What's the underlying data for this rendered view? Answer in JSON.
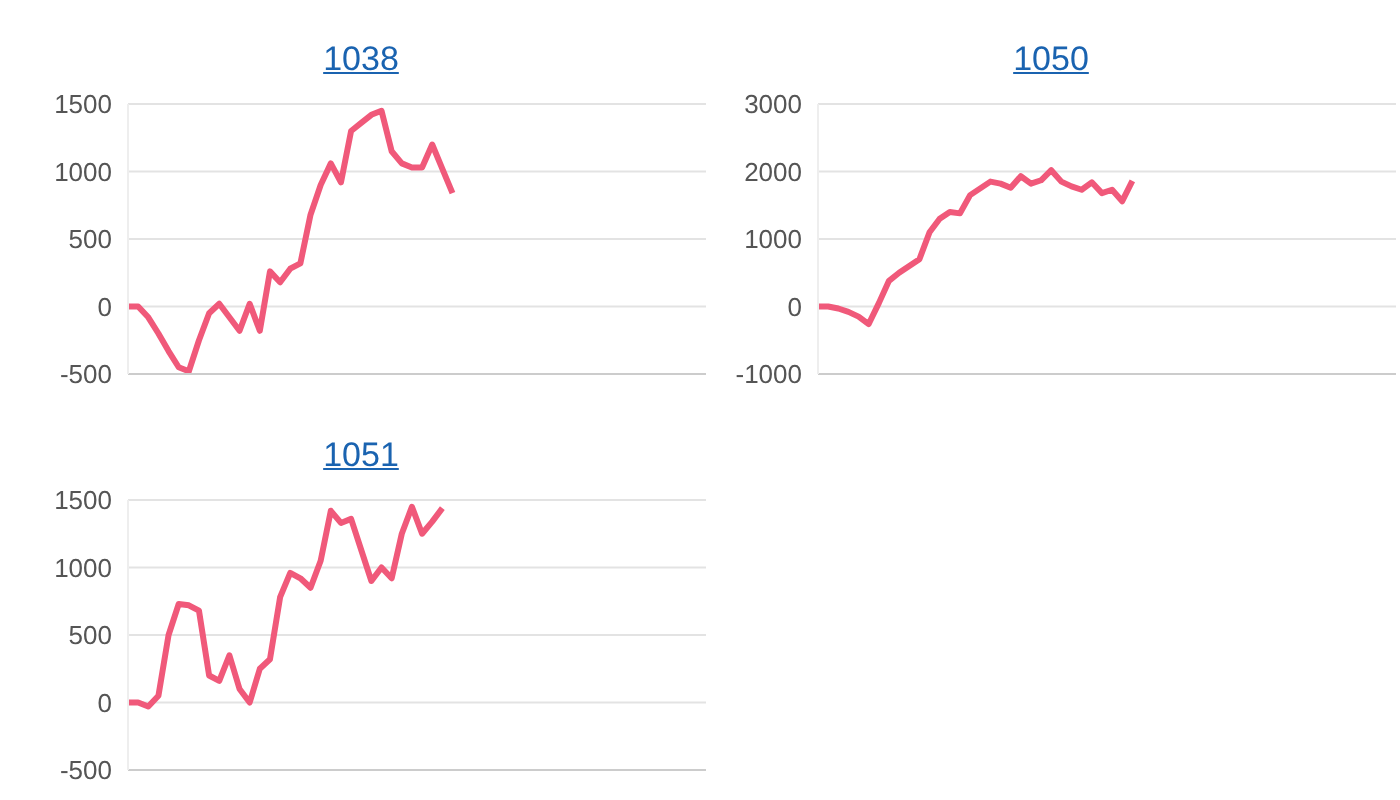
{
  "chart_data": [
    {
      "type": "line",
      "title": "1038",
      "color": "#f0597a",
      "grid": "y",
      "marker": "none",
      "tick_labels": "y",
      "ylim": [
        -500,
        1500
      ],
      "yticks": [
        -500,
        0,
        500,
        1000,
        1500
      ],
      "categories": [
        null,
        null,
        null,
        null,
        null,
        null,
        null,
        null,
        null,
        null,
        null,
        null,
        null,
        null,
        null,
        null,
        null,
        null,
        null,
        null,
        null,
        null,
        null,
        null,
        null,
        null,
        null,
        null,
        null,
        null,
        null,
        null,
        null,
        null,
        null,
        null,
        null,
        null,
        null,
        null,
        null,
        null,
        null,
        null,
        null,
        null,
        null,
        null,
        null,
        null,
        null,
        null,
        null,
        null,
        null,
        null,
        null,
        null
      ],
      "values": [
        0,
        0,
        -80,
        -200,
        -330,
        -450,
        -480,
        -250,
        -50,
        20,
        -80,
        -180,
        20,
        -180,
        260,
        180,
        280,
        320,
        680,
        900,
        1060,
        920,
        1300,
        1360,
        1420,
        1450,
        1150,
        1060,
        1030,
        1030,
        1200,
        1020,
        840,
        null,
        null,
        null,
        null,
        null,
        null,
        null,
        null,
        null,
        null,
        null,
        null,
        null,
        null,
        null,
        null,
        null,
        null,
        null,
        null,
        null,
        null,
        null,
        null,
        null
      ]
    },
    {
      "type": "line",
      "title": "1050",
      "color": "#f0597a",
      "grid": "y",
      "marker": "none",
      "tick_labels": "y",
      "ylim": [
        -1000,
        3000
      ],
      "yticks": [
        -1000,
        0,
        1000,
        2000,
        3000
      ],
      "categories": [
        null,
        null,
        null,
        null,
        null,
        null,
        null,
        null,
        null,
        null,
        null,
        null,
        null,
        null,
        null,
        null,
        null,
        null,
        null,
        null,
        null,
        null,
        null,
        null,
        null,
        null,
        null,
        null,
        null,
        null,
        null,
        null,
        null,
        null,
        null,
        null,
        null,
        null,
        null,
        null,
        null,
        null,
        null,
        null,
        null,
        null,
        null,
        null,
        null,
        null,
        null,
        null,
        null,
        null,
        null,
        null,
        null,
        null
      ],
      "values": [
        0,
        0,
        -30,
        -80,
        -150,
        -260,
        50,
        380,
        500,
        600,
        700,
        1100,
        1300,
        1400,
        1380,
        1650,
        1750,
        1850,
        1820,
        1760,
        1930,
        1820,
        1870,
        2020,
        1850,
        1780,
        1730,
        1840,
        1680,
        1730,
        1560,
        1860,
        null,
        null,
        null,
        null,
        null,
        null,
        null,
        null,
        null,
        null,
        null,
        null,
        null,
        null,
        null,
        null,
        null,
        null,
        null,
        null,
        null,
        null,
        null,
        null,
        null,
        null
      ]
    },
    {
      "type": "line",
      "title": "1051",
      "color": "#f0597a",
      "grid": "y",
      "marker": "none",
      "tick_labels": "y",
      "ylim": [
        -500,
        1500
      ],
      "yticks": [
        -500,
        0,
        500,
        1000,
        1500
      ],
      "categories": [
        null,
        null,
        null,
        null,
        null,
        null,
        null,
        null,
        null,
        null,
        null,
        null,
        null,
        null,
        null,
        null,
        null,
        null,
        null,
        null,
        null,
        null,
        null,
        null,
        null,
        null,
        null,
        null,
        null,
        null,
        null,
        null,
        null,
        null,
        null,
        null,
        null,
        null,
        null,
        null,
        null,
        null,
        null,
        null,
        null,
        null,
        null,
        null,
        null,
        null,
        null,
        null,
        null,
        null,
        null,
        null,
        null,
        null
      ],
      "values": [
        0,
        0,
        -30,
        50,
        500,
        730,
        720,
        680,
        200,
        160,
        350,
        100,
        0,
        250,
        320,
        780,
        960,
        920,
        850,
        1050,
        1420,
        1330,
        1360,
        1130,
        900,
        1000,
        920,
        1250,
        1450,
        1250,
        1340,
        1440,
        null,
        null,
        null,
        null,
        null,
        null,
        null,
        null,
        null,
        null,
        null,
        null,
        null,
        null,
        null,
        null,
        null,
        null,
        null,
        null,
        null,
        null,
        null,
        null,
        null,
        null
      ]
    }
  ]
}
